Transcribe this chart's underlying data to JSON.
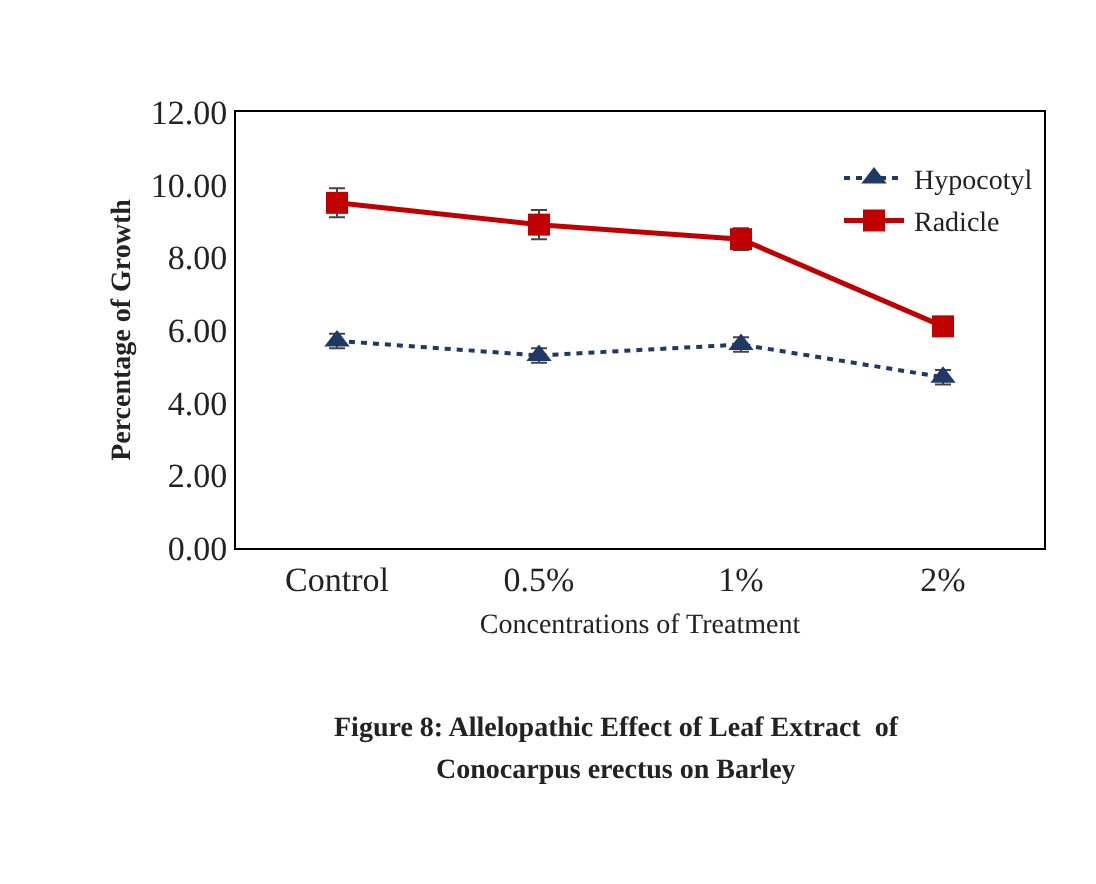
{
  "chart_data": {
    "type": "line",
    "xlabel": "Concentrations of Treatment",
    "ylabel": "Percentage of Growth",
    "categories": [
      "Control",
      "0.5%",
      "1%",
      "2%"
    ],
    "series": [
      {
        "name": "Hypocotyl",
        "color": "#1f3864",
        "values": [
          5.7,
          5.3,
          5.6,
          4.7
        ],
        "errors": [
          0.2,
          0.2,
          0.2,
          0.2
        ],
        "marker": "triangle",
        "line_style": "dotted"
      },
      {
        "name": "Radicle",
        "color": "#c00000",
        "values": [
          9.5,
          8.9,
          8.5,
          6.1
        ],
        "errors": [
          0.4,
          0.4,
          0.3,
          null
        ],
        "marker": "square",
        "line_style": "solid"
      }
    ],
    "ylim": [
      0,
      12
    ],
    "yticks": [
      {
        "value": 0,
        "label": "0.00"
      },
      {
        "value": 2,
        "label": "2.00"
      },
      {
        "value": 4,
        "label": "4.00"
      },
      {
        "value": 6,
        "label": "6.00"
      },
      {
        "value": 8,
        "label": "8.00"
      },
      {
        "value": 10,
        "label": "10.00"
      },
      {
        "value": 12,
        "label": "12.00"
      }
    ],
    "legend": "top right",
    "annotations": [
      "Figure 8: Allelopathic Effect of Leaf Extract  of",
      "Conocarpus erectus on Barley"
    ]
  }
}
